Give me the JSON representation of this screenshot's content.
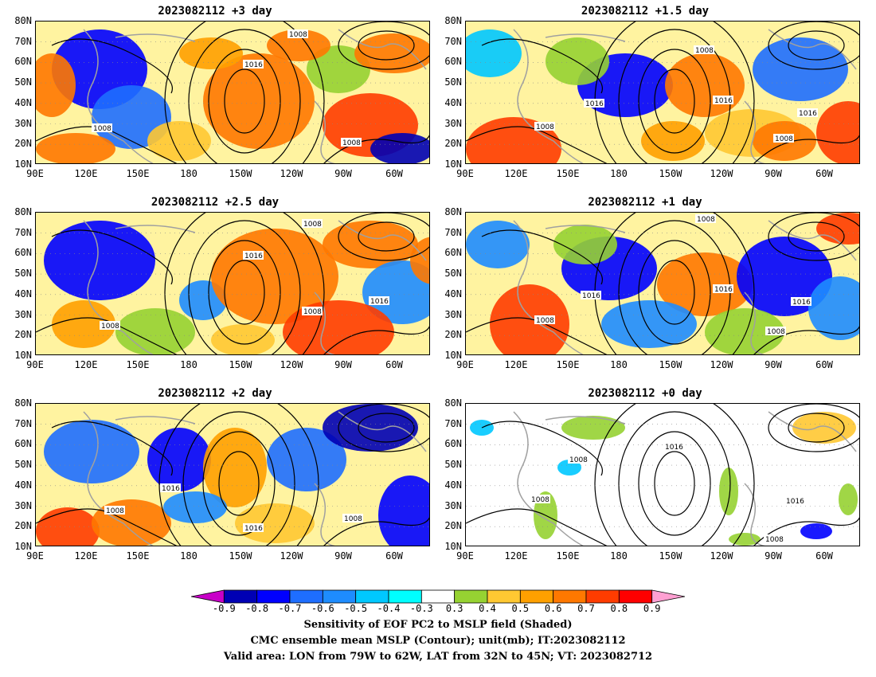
{
  "panels": [
    {
      "title": "2023082112 +3 day"
    },
    {
      "title": "2023082112 +1.5 day"
    },
    {
      "title": "2023082112 +2.5 day"
    },
    {
      "title": "2023082112 +1 day"
    },
    {
      "title": "2023082112 +2 day"
    },
    {
      "title": "2023082112 +0 day"
    }
  ],
  "lat_labels": [
    "80N",
    "70N",
    "60N",
    "50N",
    "40N",
    "30N",
    "20N",
    "10N"
  ],
  "lon_labels": [
    "90E",
    "120E",
    "150E",
    "180",
    "150W",
    "120W",
    "90W",
    "60W"
  ],
  "contour_labels": [
    "1008",
    "1016"
  ],
  "colorbar": {
    "ticks": [
      "-0.9",
      "-0.8",
      "-0.7",
      "-0.6",
      "-0.5",
      "-0.4",
      "-0.3",
      "0.3",
      "0.4",
      "0.5",
      "0.6",
      "0.7",
      "0.8",
      "0.9"
    ],
    "colors": [
      "#c800c8",
      "#0000b4",
      "#0000ff",
      "#1e6eff",
      "#1e8cff",
      "#00c8ff",
      "#00ffff",
      "#ffffff",
      "#96d232",
      "#ffc832",
      "#ffa000",
      "#ff7800",
      "#ff3c00",
      "#ff0000",
      "#ffa0d2"
    ]
  },
  "captions": [
    "Sensitivity of EOF PC2 to MSLP field (Shaded)",
    "CMC ensemble mean MSLP (Contour); unit(mb); IT:2023082112",
    "Valid area: LON from 79W to 62W, LAT from 32N to 45N; VT: 2023082712"
  ]
}
